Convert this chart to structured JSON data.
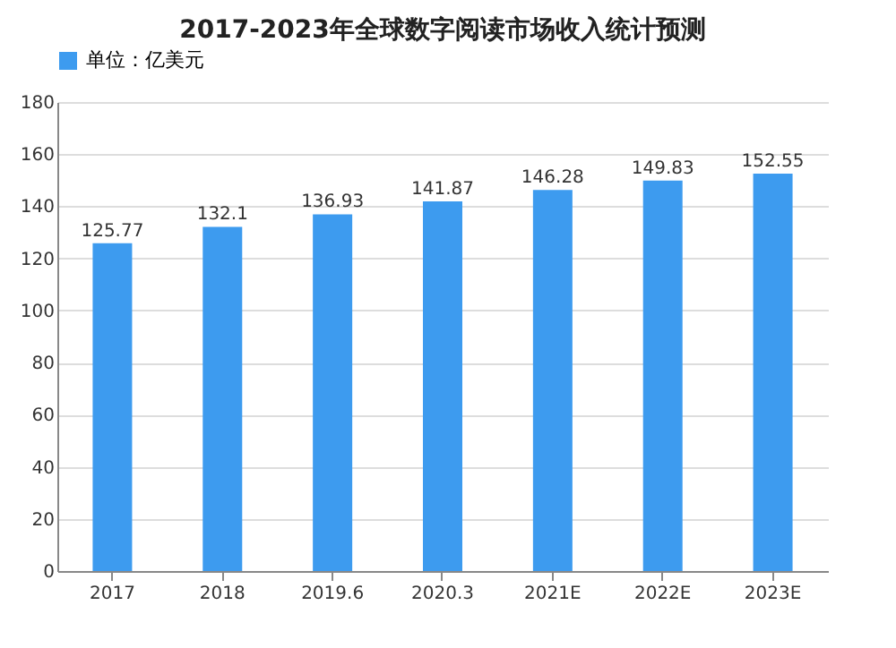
{
  "chart_data": {
    "type": "bar",
    "title": "2017-2023年全球数字阅读市场收入统计预测",
    "categories": [
      "2017",
      "2018",
      "2019.6",
      "2020.3",
      "2021E",
      "2022E",
      "2023E"
    ],
    "series": [
      {
        "name": "单位：亿美元",
        "color": "#3d9bef",
        "values": [
          125.77,
          132.1,
          136.93,
          141.87,
          146.28,
          149.83,
          152.55
        ]
      }
    ],
    "ylim": [
      0,
      180
    ],
    "yticks": [
      0,
      20,
      40,
      60,
      80,
      100,
      120,
      140,
      160,
      180
    ],
    "grid": "y",
    "legend": "top",
    "data_labels": true
  }
}
